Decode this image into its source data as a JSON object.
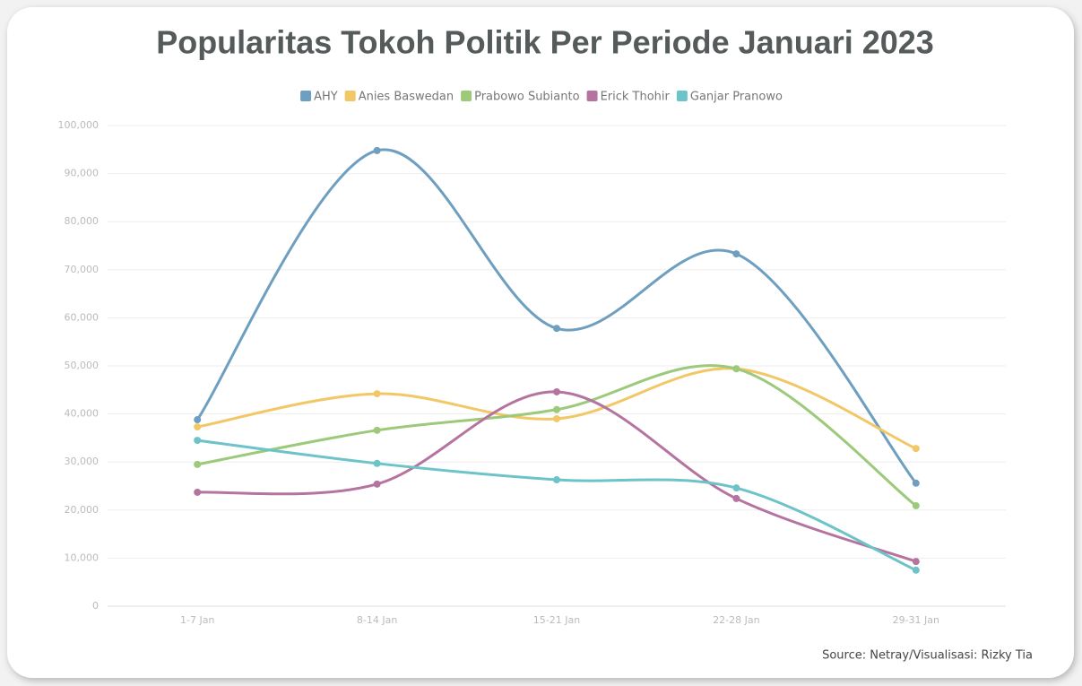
{
  "chart_data": {
    "type": "line",
    "title": "Popularitas Tokoh Politik Per Periode Januari 2023",
    "categories": [
      "1-7 Jan",
      "8-14 Jan",
      "15-21 Jan",
      "22-28 Jan",
      "29-31 Jan"
    ],
    "series": [
      {
        "name": "AHY",
        "color": "#6f9fc0",
        "values": [
          38800,
          94800,
          57800,
          73300,
          25600
        ]
      },
      {
        "name": "Anies Baswedan",
        "color": "#f2c766",
        "values": [
          37300,
          44200,
          39000,
          49400,
          32800
        ]
      },
      {
        "name": "Prabowo Subianto",
        "color": "#9cc97a",
        "values": [
          29500,
          36600,
          40900,
          49400,
          20900
        ]
      },
      {
        "name": "Erick Thohir",
        "color": "#b573a0",
        "values": [
          23700,
          25400,
          44600,
          22400,
          9300
        ]
      },
      {
        "name": "Ganjar Pranowo",
        "color": "#6cc3c8",
        "values": [
          34500,
          29700,
          26300,
          24600,
          7500
        ]
      }
    ],
    "ylim": [
      0,
      100000
    ],
    "yticks": [
      0,
      {
        "value": 10000,
        "label": "10,000"
      },
      {
        "value": 20000,
        "label": "20,000"
      },
      {
        "value": 30000,
        "label": "30,000"
      },
      {
        "value": 40000,
        "label": "40,000"
      },
      {
        "value": 50000,
        "label": "50,000"
      },
      {
        "value": 60000,
        "label": "60,000"
      },
      {
        "value": 70000,
        "label": "70,000"
      },
      {
        "value": 80000,
        "label": "80,000"
      },
      {
        "value": 90000,
        "label": "90,000"
      },
      {
        "value": 100000,
        "label": "100,000"
      }
    ],
    "grid": true,
    "legend": "top",
    "source": "Source: Netray/Visualisasi: Rizky Tia"
  }
}
